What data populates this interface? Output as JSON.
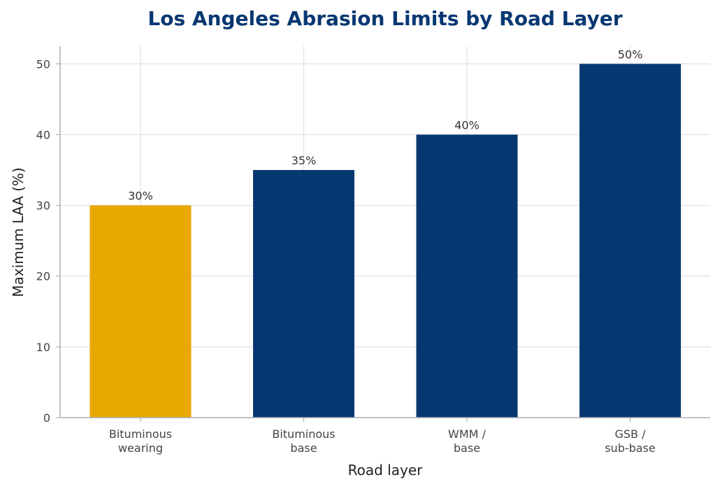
{
  "chart_data": {
    "type": "bar",
    "title": "Los Angeles Abrasion Limits by Road Layer",
    "xlabel": "Road layer",
    "ylabel": "Maximum LAA (%)",
    "categories": [
      [
        "Bituminous",
        "wearing"
      ],
      [
        "Bituminous",
        "base"
      ],
      [
        "WMM /",
        "base"
      ],
      [
        "GSB /",
        "sub-base"
      ]
    ],
    "values": [
      30,
      35,
      40,
      50
    ],
    "data_labels": [
      "30%",
      "35%",
      "40%",
      "50%"
    ],
    "bar_colors": [
      "#E8A800",
      "#083872",
      "#083872",
      "#083872"
    ],
    "ylim": [
      0,
      52.5
    ],
    "yticks": [
      0,
      10,
      20,
      30,
      40,
      50
    ],
    "grid": true,
    "colors": {
      "title": "#083872",
      "grid": "#dde1e6",
      "axis": "#a9b0b8"
    }
  }
}
